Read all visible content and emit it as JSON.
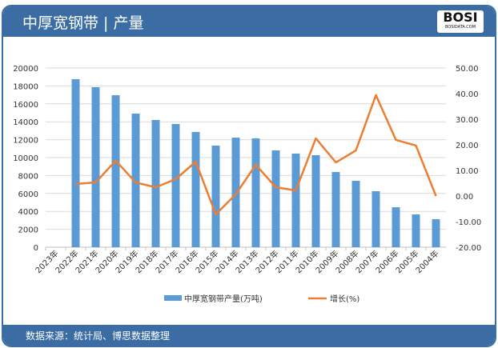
{
  "header": {
    "title": "中厚宽钢带 | 产量",
    "logo": "BOSI",
    "logo_sub": "BOSIDATA.COM"
  },
  "footer": {
    "source": "数据来源：统计局、博思数据整理"
  },
  "colors": {
    "bar": "#5b9bd5",
    "line": "#ed7d31",
    "header": "#3b6ca3"
  },
  "chart_data": {
    "type": "bar+line",
    "categories": [
      "2023年",
      "2022年",
      "2021年",
      "2020年",
      "2019年",
      "2018年",
      "2017年",
      "2016年",
      "2015年",
      "2014年",
      "2013年",
      "2012年",
      "2011年",
      "2010年",
      "2009年",
      "2008年",
      "2007年",
      "2006年",
      "2005年",
      "2004年"
    ],
    "series": [
      {
        "name": "中厚宽钢带产量(万吨)",
        "type": "bar",
        "axis": "left",
        "values": [
          null,
          18750,
          17860,
          16960,
          14910,
          14200,
          13750,
          12860,
          11340,
          12230,
          12140,
          10800,
          10450,
          10270,
          8390,
          7410,
          6250,
          4460,
          3660,
          3125
        ]
      },
      {
        "name": "增长(%)",
        "type": "line",
        "axis": "right",
        "values": [
          null,
          4.7,
          5.3,
          13.8,
          5.3,
          3.4,
          6.6,
          13.4,
          -7.2,
          0.7,
          12.2,
          3.4,
          2.2,
          22.5,
          13.1,
          17.8,
          39.4,
          21.9,
          19.7,
          0.0
        ]
      }
    ],
    "left_axis": {
      "range": [
        0,
        20000
      ],
      "ticks": [
        "0",
        "2000",
        "4000",
        "6000",
        "8000",
        "10000",
        "12000",
        "14000",
        "16000",
        "18000",
        "20000"
      ]
    },
    "right_axis": {
      "range": [
        -20,
        50
      ],
      "ticks": [
        "-20.00",
        "-10.00",
        "0.00",
        "10.00",
        "20.00",
        "30.00",
        "40.00",
        "50.00"
      ]
    },
    "grid": true,
    "legend": "bottom"
  }
}
